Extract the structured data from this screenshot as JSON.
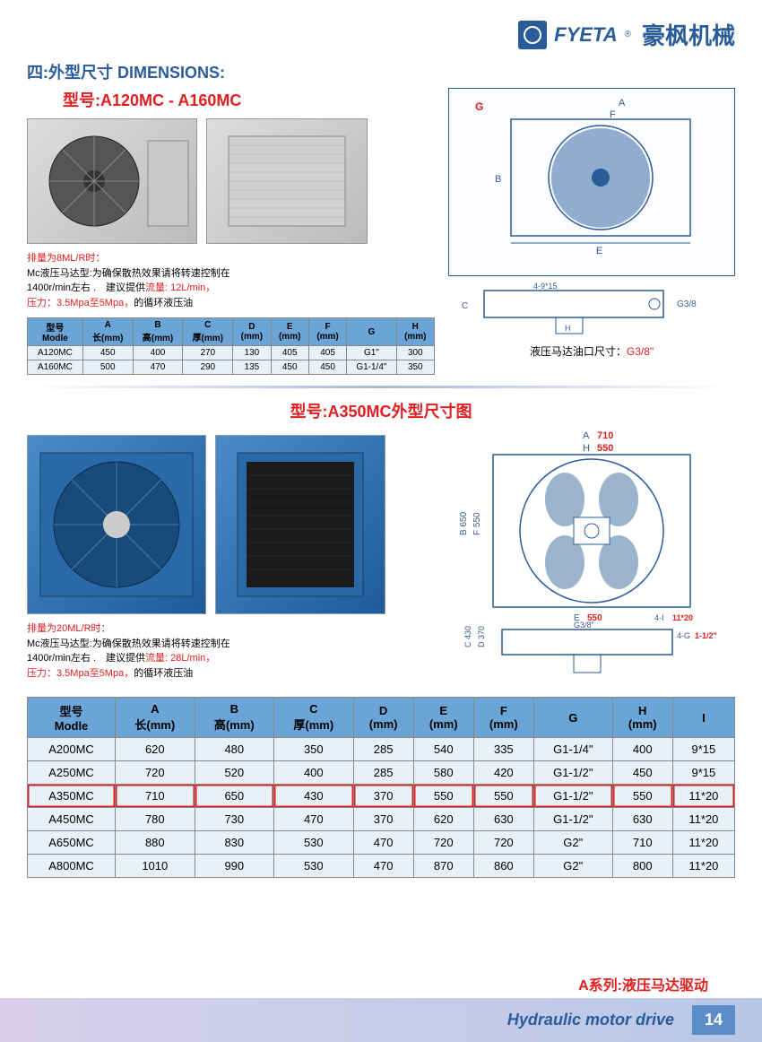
{
  "brand": {
    "en": "FYETA",
    "cn": "豪枫机械",
    "r": "®"
  },
  "section_title": "四:外型尺寸 DIMENSIONS:",
  "model1_title": "型号:A120MC - A160MC",
  "note1": {
    "line1": "排量为8ML/R时：",
    "line2a": "Mc液压马达型:为确保散热效果请将转速控制在",
    "line2b": "1400r/min左右 .　建议提供",
    "flow_label": "流量: 12L/min，",
    "line3a": "压力：3.5Mpa至5Mpa，",
    "line3b": "的循环液压油"
  },
  "table1": {
    "headers": [
      {
        "l1": "型号",
        "l2": "Modle"
      },
      {
        "l1": "A",
        "l2": "长(mm)"
      },
      {
        "l1": "B",
        "l2": "高(mm)"
      },
      {
        "l1": "C",
        "l2": "厚(mm)"
      },
      {
        "l1": "D",
        "l2": "(mm)"
      },
      {
        "l1": "E",
        "l2": "(mm)"
      },
      {
        "l1": "F",
        "l2": "(mm)"
      },
      {
        "l1": "G",
        "l2": ""
      },
      {
        "l1": "H",
        "l2": "(mm)"
      }
    ],
    "rows": [
      [
        "A120MC",
        "450",
        "400",
        "270",
        "130",
        "405",
        "405",
        "G1\"",
        "300"
      ],
      [
        "A160MC",
        "500",
        "470",
        "290",
        "135",
        "450",
        "450",
        "G1-1/4\"",
        "350"
      ]
    ]
  },
  "diagram1": {
    "caption_a": "液压马达油口尺寸：",
    "caption_b": "G3/8\"",
    "labels": {
      "G": "G",
      "A": "A",
      "F": "F",
      "B": "B",
      "E": "E",
      "C": "C",
      "H": "H",
      "port": "G3/8",
      "bolt": "4-9*15"
    }
  },
  "model2_title": "型号:A350MC外型尺寸图",
  "note2": {
    "line1": "排量为20ML/R时：",
    "line2a": "Mc液压马达型:为确保散热效果请将转速控制在",
    "line2b": "1400r/min左右 .　建议提供",
    "flow_label": "流量: 28L/min，",
    "line3a": "压力：3.5Mpa至5Mpa，",
    "line3b": "的循环液压油"
  },
  "diagram2": {
    "A": "A 710",
    "H": "H 550",
    "B": "B 650",
    "F": "F 550",
    "E": "E 550",
    "C": "C 430",
    "D": "D 370",
    "bolt": "4-I 11*20",
    "port1": "G3/8\"",
    "port2": "4-G 1-1/2\""
  },
  "table2": {
    "headers": [
      {
        "l1": "型号",
        "l2": "Modle"
      },
      {
        "l1": "A",
        "l2": "长(mm)"
      },
      {
        "l1": "B",
        "l2": "高(mm)"
      },
      {
        "l1": "C",
        "l2": "厚(mm)"
      },
      {
        "l1": "D",
        "l2": "(mm)"
      },
      {
        "l1": "E",
        "l2": "(mm)"
      },
      {
        "l1": "F",
        "l2": "(mm)"
      },
      {
        "l1": "G",
        "l2": ""
      },
      {
        "l1": "H",
        "l2": "(mm)"
      },
      {
        "l1": "I",
        "l2": ""
      }
    ],
    "rows": [
      {
        "cells": [
          "A200MC",
          "620",
          "480",
          "350",
          "285",
          "540",
          "335",
          "G1-1/4\"",
          "400",
          "9*15"
        ],
        "hl": false
      },
      {
        "cells": [
          "A250MC",
          "720",
          "520",
          "400",
          "285",
          "580",
          "420",
          "G1-1/2\"",
          "450",
          "9*15"
        ],
        "hl": false
      },
      {
        "cells": [
          "A350MC",
          "710",
          "650",
          "430",
          "370",
          "550",
          "550",
          "G1-1/2\"",
          "550",
          "11*20"
        ],
        "hl": true
      },
      {
        "cells": [
          "A450MC",
          "780",
          "730",
          "470",
          "370",
          "620",
          "630",
          "G1-1/2\"",
          "630",
          "11*20"
        ],
        "hl": false
      },
      {
        "cells": [
          "A650MC",
          "880",
          "830",
          "530",
          "470",
          "720",
          "720",
          "G2\"",
          "710",
          "11*20"
        ],
        "hl": false
      },
      {
        "cells": [
          "A800MC",
          "1010",
          "990",
          "530",
          "470",
          "870",
          "860",
          "G2\"",
          "800",
          "11*20"
        ],
        "hl": false
      }
    ]
  },
  "footer": {
    "series": "A系列:液压马达驱动",
    "en": "Hydraulic motor drive",
    "page": "14"
  }
}
